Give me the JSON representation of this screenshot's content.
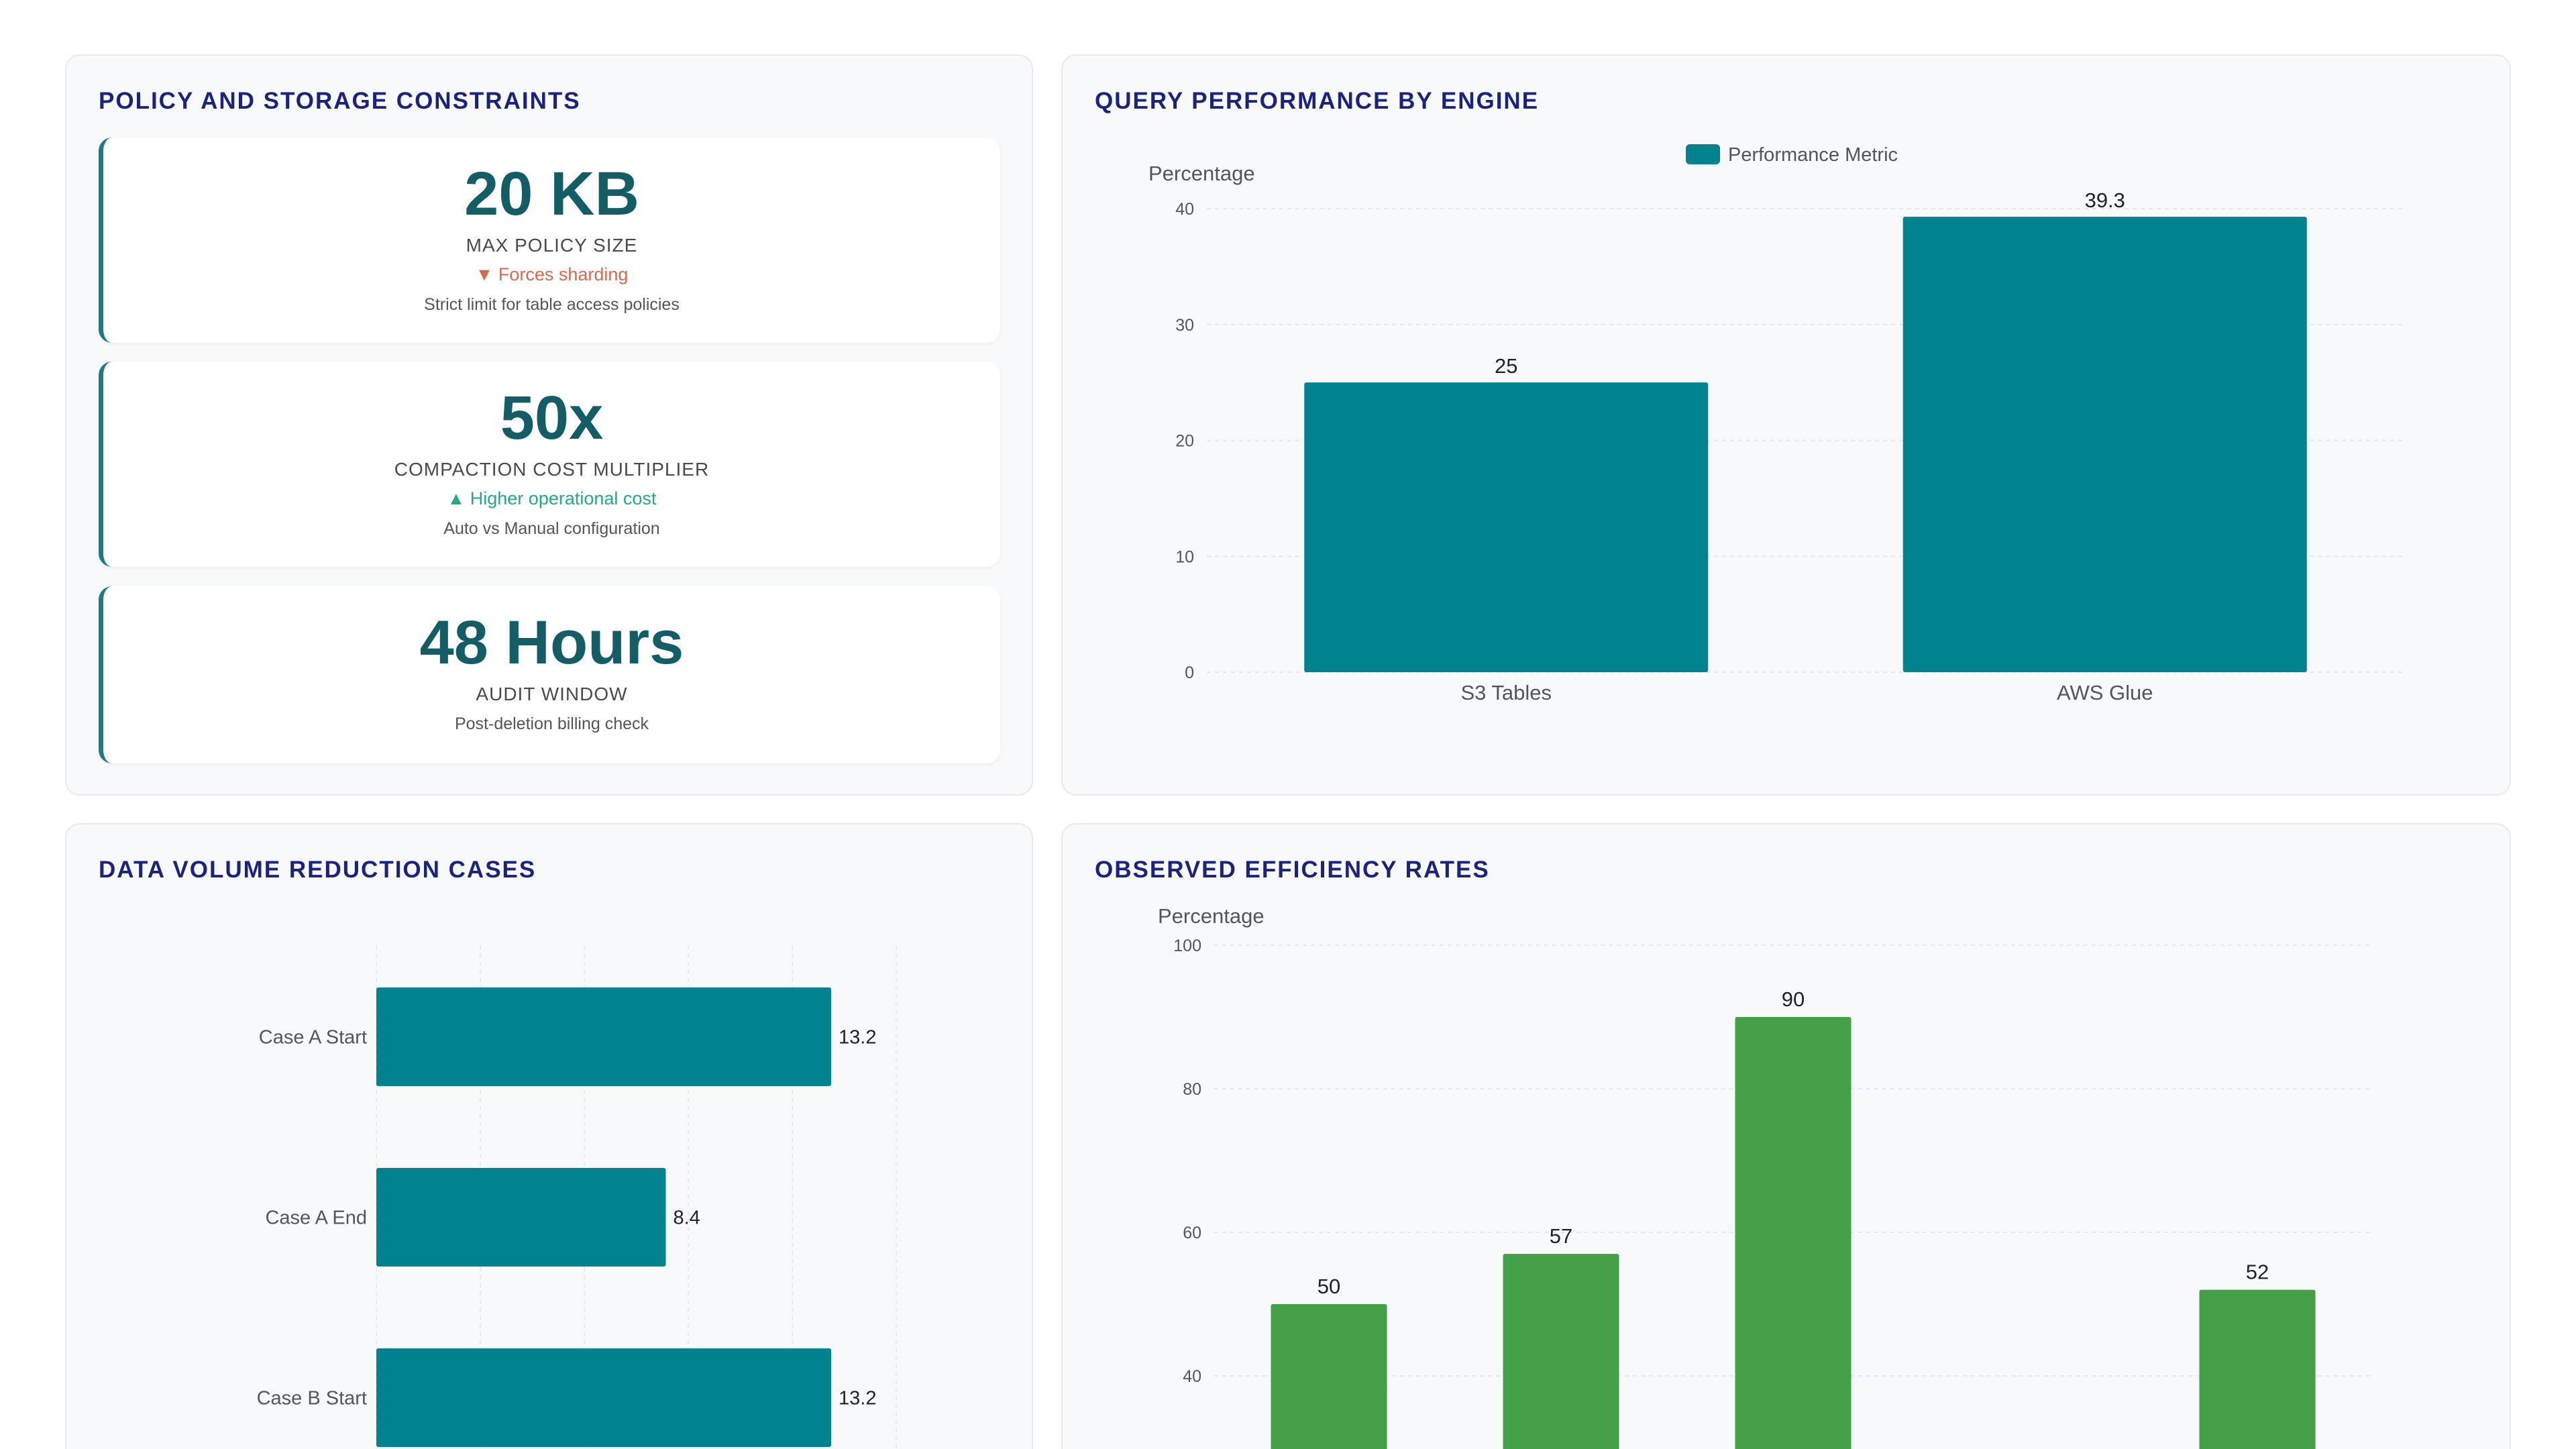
{
  "colors": {
    "accent": "#00838f",
    "green": "#43a047",
    "title": "#1a237e",
    "kpi_value": "#135e66",
    "trend_down": "#d9694c",
    "trend_up": "#20a98a"
  },
  "policy": {
    "title": "POLICY AND STORAGE CONSTRAINTS",
    "cards": [
      {
        "value": "20 KB",
        "label": "MAX POLICY SIZE",
        "trend": "▼ Forces sharding",
        "trend_dir": "down",
        "note": "Strict limit for table access policies"
      },
      {
        "value": "50x",
        "label": "COMPACTION COST MULTIPLIER",
        "trend": "▲ Higher operational cost",
        "trend_dir": "up",
        "note": "Auto vs Manual configuration"
      },
      {
        "value": "48 Hours",
        "label": "AUDIT WINDOW",
        "note": "Post-deletion billing check"
      }
    ]
  },
  "query": {
    "title": "QUERY PERFORMANCE BY ENGINE"
  },
  "volume": {
    "title": "DATA VOLUME REDUCTION CASES"
  },
  "efficiency": {
    "title": "OBSERVED EFFICIENCY RATES"
  },
  "chart_data": [
    {
      "type": "bar",
      "title": "QUERY PERFORMANCE BY ENGINE",
      "ylabel": "Percentage",
      "categories": [
        "S3 Tables",
        "AWS Glue"
      ],
      "series": [
        {
          "name": "Performance Metric",
          "values": [
            25,
            39.3
          ]
        }
      ],
      "ylim": [
        0,
        40
      ],
      "yticks": [
        0,
        10,
        20,
        30,
        40
      ],
      "legend": "top-center",
      "grid": true
    },
    {
      "type": "bar",
      "orientation": "horizontal",
      "title": "DATA VOLUME REDUCTION CASES",
      "categories": [
        "Case A Start",
        "Case A End",
        "Case B Start"
      ],
      "values": [
        13.2,
        8.4,
        13.2
      ],
      "grid": true
    },
    {
      "type": "bar",
      "title": "OBSERVED EFFICIENCY RATES",
      "ylabel": "Percentage",
      "values": [
        50,
        57,
        90,
        null,
        52
      ],
      "yticks": [
        40,
        60,
        80,
        100
      ],
      "ylim_visible": [
        40,
        100
      ],
      "grid": true
    }
  ]
}
